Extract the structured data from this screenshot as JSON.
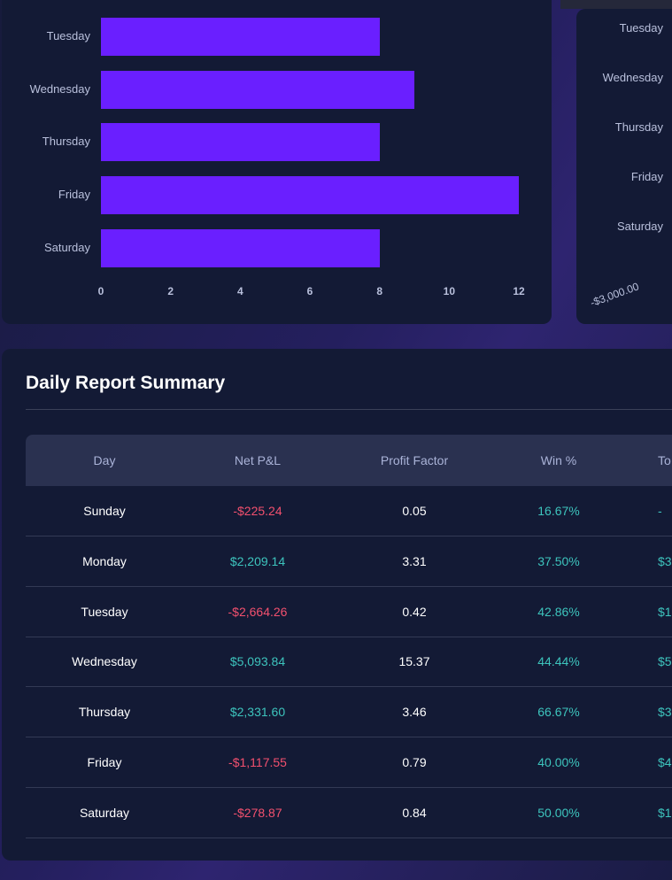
{
  "trades_by_day_chart": {
    "chart_data": {
      "type": "bar",
      "orientation": "horizontal",
      "categories": [
        "Tuesday",
        "Wednesday",
        "Thursday",
        "Friday",
        "Saturday"
      ],
      "values": [
        8,
        9,
        8,
        12,
        8
      ],
      "xlim": [
        0,
        12
      ],
      "xticks": [
        "0",
        "2",
        "4",
        "6",
        "8",
        "10",
        "12"
      ],
      "bar_color": "#6a1fff"
    }
  },
  "right_chart": {
    "categories": [
      "Tuesday",
      "Wednesday",
      "Thursday",
      "Friday",
      "Saturday"
    ],
    "first_tick": "-$3,000.00"
  },
  "report": {
    "title": "Daily Report Summary",
    "columns": [
      "Day",
      "Net P&L",
      "Profit Factor",
      "Win %",
      "To"
    ],
    "rows": [
      {
        "day": "Sunday",
        "pnl": "-$225.24",
        "pf": "0.05",
        "win": "16.67%",
        "tot": "-",
        "sign": "neg"
      },
      {
        "day": "Monday",
        "pnl": "$2,209.14",
        "pf": "3.31",
        "win": "37.50%",
        "tot": "$3",
        "sign": "pos"
      },
      {
        "day": "Tuesday",
        "pnl": "-$2,664.26",
        "pf": "0.42",
        "win": "42.86%",
        "tot": "$1",
        "sign": "neg"
      },
      {
        "day": "Wednesday",
        "pnl": "$5,093.84",
        "pf": "15.37",
        "win": "44.44%",
        "tot": "$5",
        "sign": "pos"
      },
      {
        "day": "Thursday",
        "pnl": "$2,331.60",
        "pf": "3.46",
        "win": "66.67%",
        "tot": "$3",
        "sign": "pos"
      },
      {
        "day": "Friday",
        "pnl": "-$1,117.55",
        "pf": "0.79",
        "win": "40.00%",
        "tot": "$4",
        "sign": "neg"
      },
      {
        "day": "Saturday",
        "pnl": "-$278.87",
        "pf": "0.84",
        "win": "50.00%",
        "tot": "$1",
        "sign": "neg"
      }
    ]
  },
  "colors": {
    "positive": "#3dc4bd",
    "negative": "#f2506e",
    "accent": "#6a1fff"
  }
}
